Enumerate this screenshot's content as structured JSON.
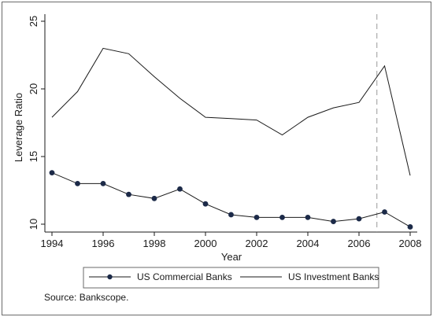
{
  "chart_data": {
    "type": "line",
    "xlabel": "Year",
    "ylabel": "Leverage Ratio",
    "xlim": [
      1994,
      2008
    ],
    "ylim": [
      10,
      25
    ],
    "x_ticks": [
      "1994",
      "1996",
      "1998",
      "2000",
      "2002",
      "2004",
      "2006",
      "2008"
    ],
    "y_ticks": [
      "10",
      "15",
      "20",
      "25"
    ],
    "x": [
      1994,
      1995,
      1996,
      1997,
      1998,
      1999,
      2000,
      2001,
      2002,
      2003,
      2004,
      2005,
      2006,
      2007,
      2008
    ],
    "series": [
      {
        "name": "US Commercial Banks",
        "marker": "circle",
        "values": [
          13.8,
          13.0,
          13.0,
          12.2,
          11.9,
          12.6,
          11.5,
          10.7,
          10.5,
          10.5,
          10.5,
          10.2,
          10.4,
          10.9,
          9.8
        ]
      },
      {
        "name": "US Investment Banks",
        "marker": "none",
        "values": [
          17.9,
          19.8,
          23.0,
          22.6,
          20.9,
          19.3,
          17.9,
          17.8,
          17.7,
          16.6,
          17.9,
          18.6,
          19.0,
          21.7,
          13.6
        ]
      }
    ],
    "reference_line": {
      "x": 2006.7,
      "style": "dashed"
    },
    "legend_position": "bottom",
    "grid": false,
    "note": "Source: Bankscope."
  },
  "colors": {
    "line": "#1a1a1a",
    "marker": "#1c2a48",
    "reference": "#999999",
    "frame": "#6a6a6a",
    "background": "#ffffff"
  }
}
